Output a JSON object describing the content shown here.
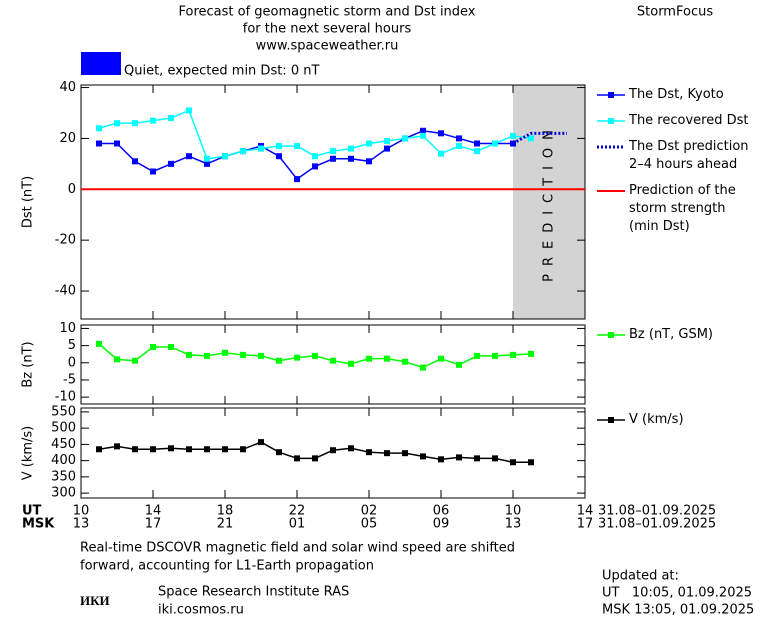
{
  "header": {
    "title_lines": [
      "Forecast of geomagnetic storm and Dst index",
      "for the next several hours",
      "www.spaceweather.ru"
    ],
    "brand": "StormFocus"
  },
  "status": {
    "text": "Quiet, expected min Dst: 0 nT",
    "color": "#0000ff"
  },
  "chart_data": [
    {
      "type": "line",
      "ylabel": "Dst (nT)",
      "xlim": [
        0,
        28
      ],
      "ylim": [
        -51,
        41
      ],
      "yticks": [
        -40,
        -20,
        0,
        20,
        40
      ],
      "series": [
        {
          "name": "The Dst, Kyoto",
          "color": "#0000ff",
          "x": [
            1,
            2,
            3,
            4,
            5,
            6,
            7,
            8,
            9,
            10,
            11,
            12,
            13,
            14,
            15,
            16,
            17,
            18,
            19,
            20,
            21,
            22,
            23,
            24
          ],
          "values": [
            18,
            18,
            11,
            7,
            10,
            13,
            10,
            13,
            15,
            17,
            13,
            4,
            9,
            12,
            12,
            11,
            16,
            20,
            23,
            22,
            20,
            18,
            18,
            18
          ]
        },
        {
          "name": "The recovered Dst",
          "color": "#00ffff",
          "x": [
            1,
            2,
            3,
            4,
            5,
            6,
            7,
            8,
            9,
            10,
            11,
            12,
            13,
            14,
            15,
            16,
            17,
            18,
            19,
            20,
            21,
            22,
            23,
            24,
            25
          ],
          "values": [
            24,
            26,
            26,
            27,
            28,
            31,
            12,
            13,
            15,
            16,
            17,
            17,
            13,
            15,
            16,
            18,
            19,
            20,
            21,
            14,
            17,
            15,
            18,
            21,
            20
          ]
        },
        {
          "name": "The Dst prediction\n2–4 hours ahead",
          "color": "#0000cc",
          "dash": "dotted",
          "x": [
            24,
            25,
            26,
            27
          ],
          "values": [
            18,
            22,
            22,
            22
          ]
        }
      ],
      "reference_line": {
        "name": "Prediction of the\nstorm strength\n(min Dst)",
        "value": 0,
        "color": "#ff0000"
      },
      "shaded_region": {
        "label": "PREDICTION",
        "x": [
          24,
          28
        ],
        "color": "#d3d3d3"
      }
    },
    {
      "type": "line",
      "ylabel": "Bz (nT)",
      "xlim": [
        0,
        28
      ],
      "ylim": [
        -12,
        11
      ],
      "yticks": [
        -10,
        -5,
        0,
        5,
        10
      ],
      "series": [
        {
          "name": "Bz (nT, GSM)",
          "color": "#00ff00",
          "x": [
            1,
            2,
            3,
            4,
            5,
            6,
            7,
            8,
            9,
            10,
            11,
            12,
            13,
            14,
            15,
            16,
            17,
            18,
            19,
            20,
            21,
            22,
            23,
            24,
            25
          ],
          "values": [
            5.5,
            1,
            0.6,
            4.6,
            4.6,
            2.3,
            2,
            2.9,
            2.3,
            2,
            0.6,
            1.5,
            2,
            0.6,
            -0.3,
            1.2,
            1.2,
            0.3,
            -1.4,
            1.2,
            -0.6,
            2,
            2,
            2.3,
            2.6
          ]
        }
      ]
    },
    {
      "type": "line",
      "ylabel": "V (km/s)",
      "xlim": [
        0,
        28
      ],
      "ylim": [
        285,
        562
      ],
      "yticks": [
        300,
        350,
        400,
        450,
        500,
        550
      ],
      "xlabel": "UT",
      "x2label": "MSK",
      "xticks": [
        {
          "value": 0,
          "label": "10"
        },
        {
          "value": 4,
          "label": "14"
        },
        {
          "value": 8,
          "label": "18"
        },
        {
          "value": 12,
          "label": "22"
        },
        {
          "value": 16,
          "label": "02"
        },
        {
          "value": 20,
          "label": "06"
        },
        {
          "value": 24,
          "label": "10"
        },
        {
          "value": 28,
          "label": "14"
        }
      ],
      "x2ticks": [
        {
          "value": 0,
          "label": "13"
        },
        {
          "value": 4,
          "label": "17"
        },
        {
          "value": 8,
          "label": "21"
        },
        {
          "value": 12,
          "label": "01"
        },
        {
          "value": 16,
          "label": "05"
        },
        {
          "value": 20,
          "label": "09"
        },
        {
          "value": 24,
          "label": "13"
        },
        {
          "value": 28,
          "label": "17"
        }
      ],
      "date_range": [
        "31.08–01.09.2025",
        "31.08–01.09.2025"
      ],
      "series": [
        {
          "name": "V (km/s)",
          "color": "#000000",
          "x": [
            1,
            2,
            3,
            4,
            5,
            6,
            7,
            8,
            9,
            10,
            11,
            12,
            13,
            14,
            15,
            16,
            17,
            18,
            19,
            20,
            21,
            22,
            23,
            24,
            25
          ],
          "values": [
            435,
            444,
            435,
            435,
            438,
            435,
            435,
            435,
            435,
            457,
            426,
            407,
            407,
            432,
            438,
            426,
            423,
            423,
            413,
            404,
            410,
            407,
            407,
            395,
            395
          ]
        }
      ]
    }
  ],
  "footer": {
    "note_lines": [
      "Real-time DSCOVR magnetic field and solar wind speed are shifted",
      "forward, accounting for L1-Earth propagation"
    ],
    "logo": "ИКИ",
    "institute": "Space Research Institute RAS",
    "site": "iki.cosmos.ru",
    "updated": [
      "Updated at:",
      "UT   10:05, 01.09.2025",
      "MSK 13:05, 01.09.2025"
    ]
  }
}
